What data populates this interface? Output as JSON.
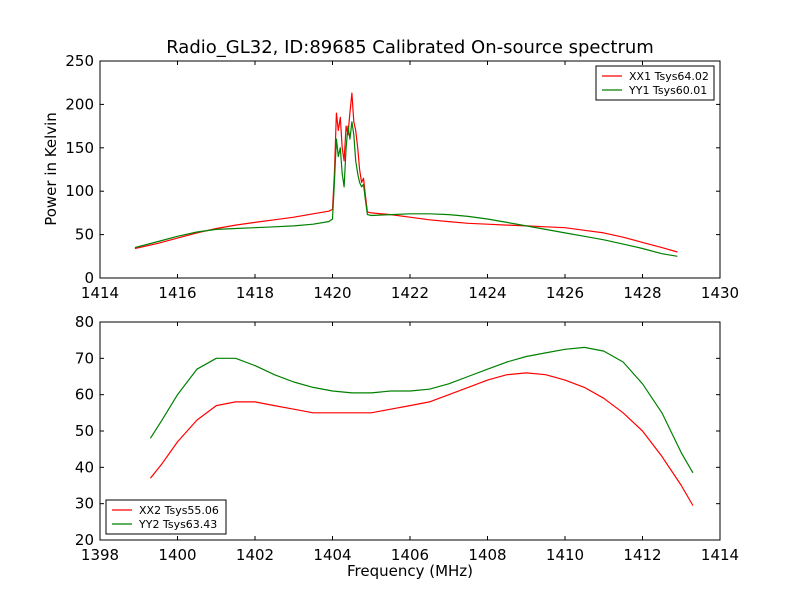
{
  "chart_data": {
    "title": "Radio_GL32, ID:89685 Calibrated On-source spectrum",
    "xlabel": "Frequency (MHz)",
    "panels": [
      {
        "type": "line",
        "ylabel": "Power in Kelvin",
        "xlim": [
          1414,
          1430
        ],
        "ylim": [
          0,
          250
        ],
        "xticks": [
          1414,
          1416,
          1418,
          1420,
          1422,
          1424,
          1426,
          1428,
          1430
        ],
        "yticks": [
          0,
          50,
          100,
          150,
          200,
          250
        ],
        "legend_position": "top-right",
        "series": [
          {
            "name": "XX1 Tsys64.02",
            "color": "#ff0000",
            "points": [
              [
                1414.9,
                34
              ],
              [
                1415.5,
                40
              ],
              [
                1416,
                46
              ],
              [
                1416.5,
                52
              ],
              [
                1417,
                57
              ],
              [
                1417.5,
                61
              ],
              [
                1418,
                64
              ],
              [
                1418.5,
                67
              ],
              [
                1419,
                70
              ],
              [
                1419.5,
                74
              ],
              [
                1419.9,
                77
              ],
              [
                1420.0,
                79
              ],
              [
                1420.05,
                120
              ],
              [
                1420.1,
                190
              ],
              [
                1420.15,
                170
              ],
              [
                1420.2,
                185
              ],
              [
                1420.25,
                150
              ],
              [
                1420.3,
                135
              ],
              [
                1420.35,
                175
              ],
              [
                1420.4,
                165
              ],
              [
                1420.45,
                190
              ],
              [
                1420.5,
                213
              ],
              [
                1420.55,
                180
              ],
              [
                1420.6,
                170
              ],
              [
                1420.65,
                150
              ],
              [
                1420.7,
                125
              ],
              [
                1420.75,
                110
              ],
              [
                1420.8,
                115
              ],
              [
                1420.85,
                95
              ],
              [
                1420.9,
                76
              ],
              [
                1421,
                75
              ],
              [
                1421.5,
                73
              ],
              [
                1422,
                70
              ],
              [
                1422.5,
                67
              ],
              [
                1423,
                65
              ],
              [
                1423.5,
                63
              ],
              [
                1424,
                62
              ],
              [
                1424.5,
                61
              ],
              [
                1425,
                60
              ],
              [
                1425.5,
                59
              ],
              [
                1426,
                58
              ],
              [
                1426.5,
                55
              ],
              [
                1427,
                52
              ],
              [
                1427.5,
                47
              ],
              [
                1428,
                41
              ],
              [
                1428.5,
                35
              ],
              [
                1428.9,
                30
              ]
            ]
          },
          {
            "name": "YY1 Tsys60.01",
            "color": "#008000",
            "points": [
              [
                1414.9,
                35
              ],
              [
                1415.5,
                42
              ],
              [
                1416,
                48
              ],
              [
                1416.5,
                53
              ],
              [
                1417,
                56
              ],
              [
                1417.5,
                57
              ],
              [
                1418,
                58
              ],
              [
                1418.5,
                59
              ],
              [
                1419,
                60
              ],
              [
                1419.5,
                62
              ],
              [
                1419.9,
                65
              ],
              [
                1420.0,
                68
              ],
              [
                1420.05,
                110
              ],
              [
                1420.1,
                160
              ],
              [
                1420.15,
                140
              ],
              [
                1420.2,
                150
              ],
              [
                1420.25,
                120
              ],
              [
                1420.3,
                105
              ],
              [
                1420.35,
                150
              ],
              [
                1420.4,
                175
              ],
              [
                1420.45,
                160
              ],
              [
                1420.5,
                180
              ],
              [
                1420.55,
                165
              ],
              [
                1420.6,
                135
              ],
              [
                1420.65,
                120
              ],
              [
                1420.7,
                110
              ],
              [
                1420.75,
                105
              ],
              [
                1420.8,
                108
              ],
              [
                1420.85,
                90
              ],
              [
                1420.9,
                73
              ],
              [
                1421,
                72
              ],
              [
                1421.5,
                73
              ],
              [
                1422,
                74
              ],
              [
                1422.5,
                74
              ],
              [
                1423,
                73
              ],
              [
                1423.5,
                71
              ],
              [
                1424,
                68
              ],
              [
                1424.5,
                64
              ],
              [
                1425,
                60
              ],
              [
                1425.5,
                56
              ],
              [
                1426,
                52
              ],
              [
                1426.5,
                48
              ],
              [
                1427,
                44
              ],
              [
                1427.5,
                39
              ],
              [
                1428,
                34
              ],
              [
                1428.5,
                28
              ],
              [
                1428.9,
                25
              ]
            ]
          }
        ]
      },
      {
        "type": "line",
        "ylabel": "",
        "xlim": [
          1398,
          1414
        ],
        "ylim": [
          20,
          80
        ],
        "xticks": [
          1398,
          1400,
          1402,
          1404,
          1406,
          1408,
          1410,
          1412,
          1414
        ],
        "yticks": [
          20,
          30,
          40,
          50,
          60,
          70,
          80
        ],
        "legend_position": "bottom-left",
        "series": [
          {
            "name": "XX2 Tsys55.06",
            "color": "#ff0000",
            "points": [
              [
                1399.3,
                37
              ],
              [
                1399.6,
                41
              ],
              [
                1400,
                47
              ],
              [
                1400.5,
                53
              ],
              [
                1401,
                57
              ],
              [
                1401.5,
                58
              ],
              [
                1402,
                58
              ],
              [
                1402.5,
                57
              ],
              [
                1403,
                56
              ],
              [
                1403.5,
                55
              ],
              [
                1404,
                55
              ],
              [
                1404.5,
                55
              ],
              [
                1405,
                55
              ],
              [
                1405.5,
                56
              ],
              [
                1406,
                57
              ],
              [
                1406.5,
                58
              ],
              [
                1407,
                60
              ],
              [
                1407.5,
                62
              ],
              [
                1408,
                64
              ],
              [
                1408.5,
                65.5
              ],
              [
                1409,
                66
              ],
              [
                1409.5,
                65.5
              ],
              [
                1410,
                64
              ],
              [
                1410.5,
                62
              ],
              [
                1411,
                59
              ],
              [
                1411.5,
                55
              ],
              [
                1412,
                50
              ],
              [
                1412.5,
                43
              ],
              [
                1413,
                35
              ],
              [
                1413.3,
                29.5
              ]
            ]
          },
          {
            "name": "YY2 Tsys63.43",
            "color": "#008000",
            "points": [
              [
                1399.3,
                48
              ],
              [
                1399.6,
                53
              ],
              [
                1400,
                60
              ],
              [
                1400.5,
                67
              ],
              [
                1401,
                70
              ],
              [
                1401.5,
                70
              ],
              [
                1402,
                68
              ],
              [
                1402.5,
                65.5
              ],
              [
                1403,
                63.5
              ],
              [
                1403.5,
                62
              ],
              [
                1404,
                61
              ],
              [
                1404.5,
                60.5
              ],
              [
                1405,
                60.5
              ],
              [
                1405.5,
                61
              ],
              [
                1406,
                61
              ],
              [
                1406.5,
                61.5
              ],
              [
                1407,
                63
              ],
              [
                1407.5,
                65
              ],
              [
                1408,
                67
              ],
              [
                1408.5,
                69
              ],
              [
                1409,
                70.5
              ],
              [
                1409.5,
                71.5
              ],
              [
                1410,
                72.5
              ],
              [
                1410.5,
                73
              ],
              [
                1411,
                72
              ],
              [
                1411.5,
                69
              ],
              [
                1412,
                63
              ],
              [
                1412.5,
                55
              ],
              [
                1413,
                44
              ],
              [
                1413.3,
                38.5
              ]
            ]
          }
        ]
      }
    ]
  }
}
